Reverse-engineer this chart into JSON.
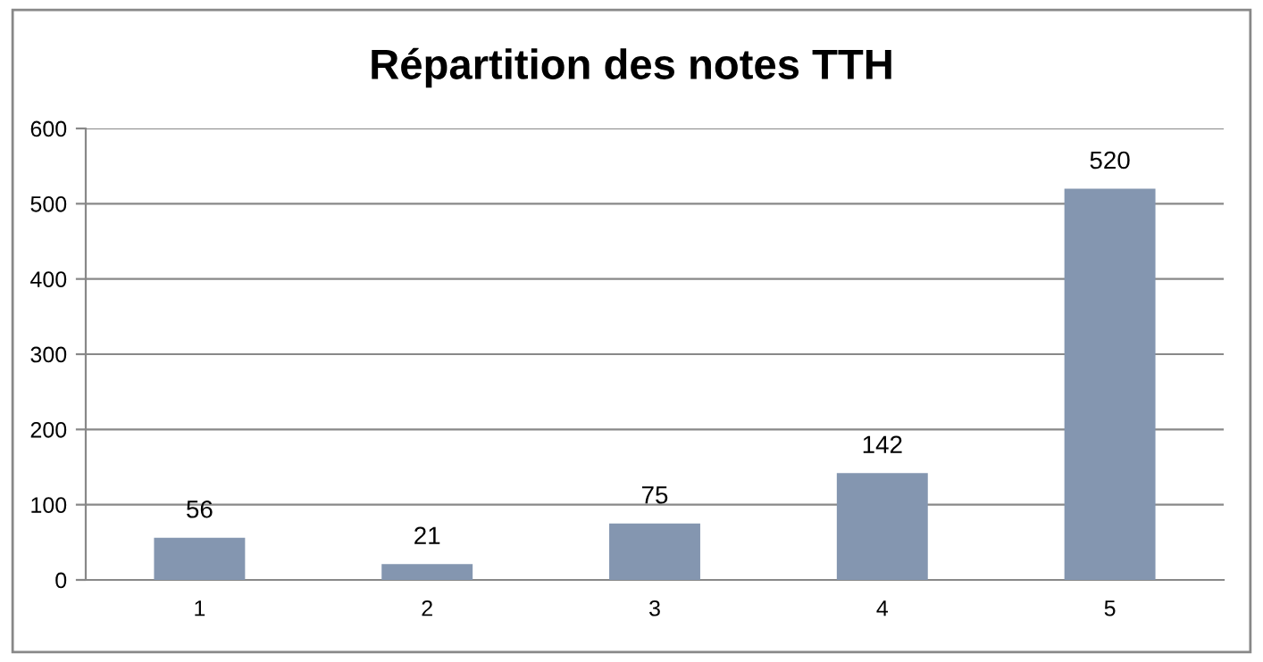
{
  "chart_data": {
    "type": "bar",
    "title": "Répartition des notes TTH",
    "categories": [
      "1",
      "2",
      "3",
      "4",
      "5"
    ],
    "values": [
      56,
      21,
      75,
      142,
      520
    ],
    "color": "#8496b0",
    "ylim": [
      0,
      600
    ],
    "yticks": [
      0,
      100,
      200,
      300,
      400,
      500,
      600
    ],
    "grid": "y",
    "data_labels": true
  }
}
